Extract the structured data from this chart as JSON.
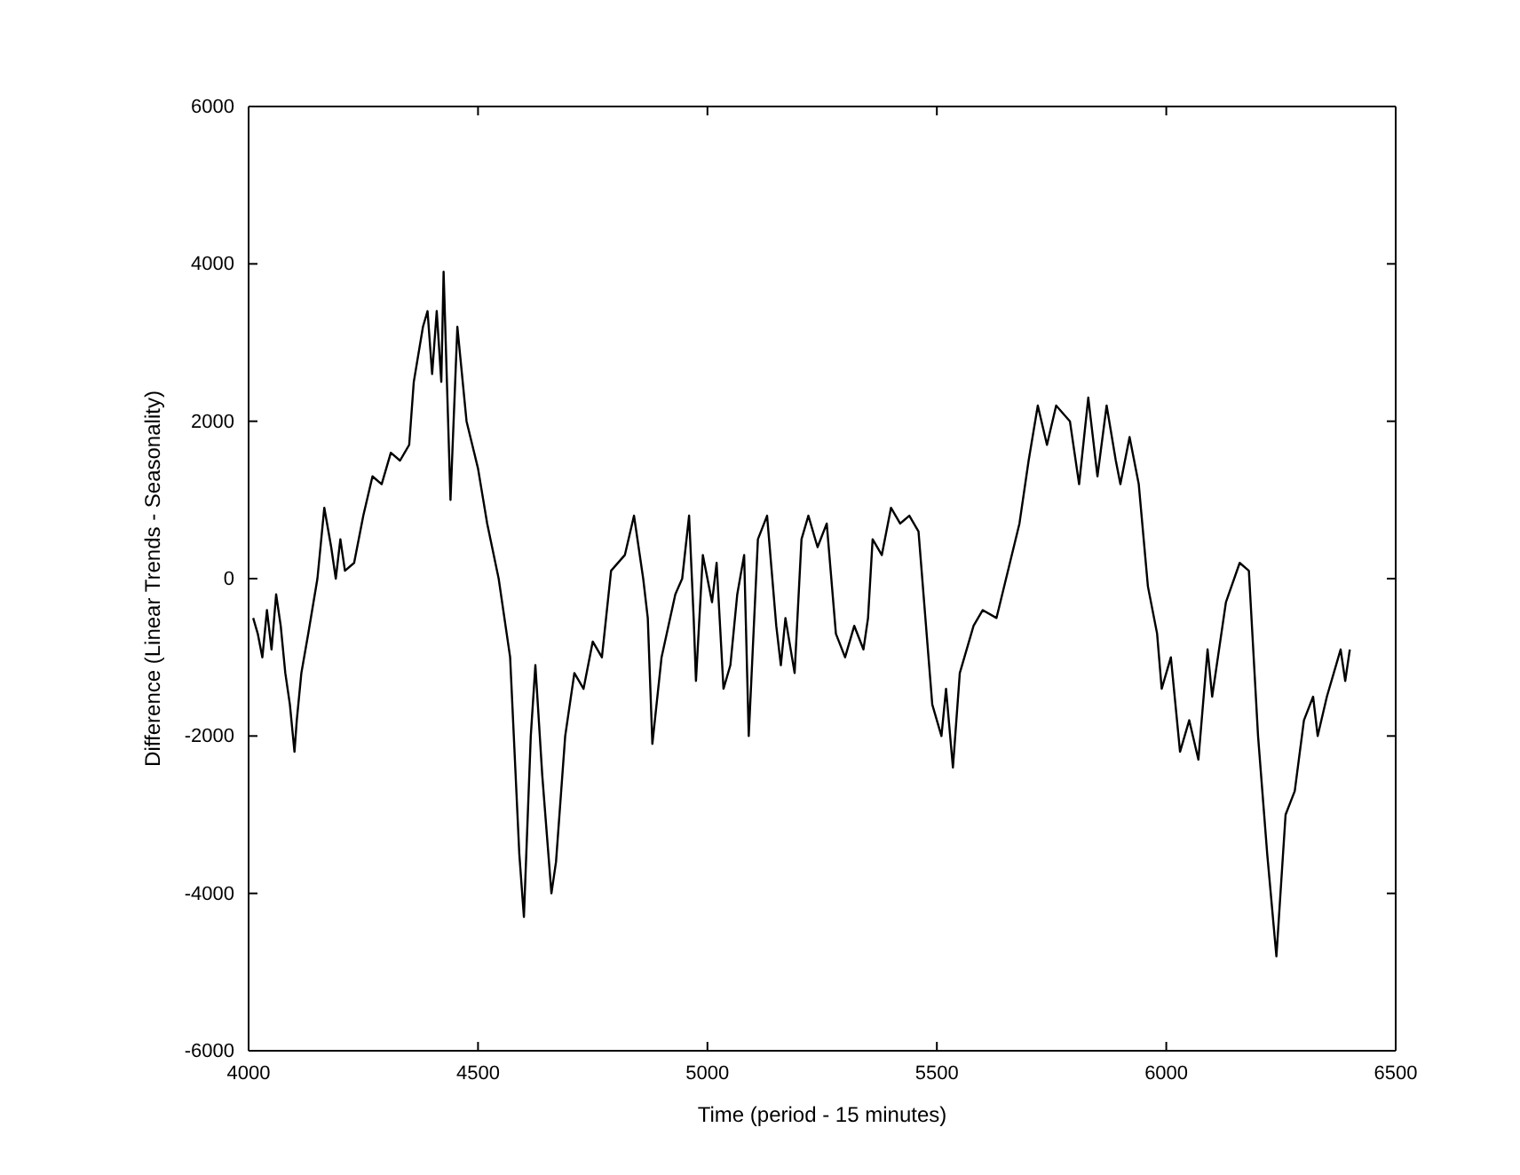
{
  "chart_data": {
    "type": "line",
    "xlabel": "Time (period - 15 minutes)",
    "ylabel": "Difference (Linear Trends - Seasonality)",
    "x": [
      4010,
      4020,
      4030,
      4040,
      4050,
      4060,
      4070,
      4080,
      4090,
      4100,
      4105,
      4115,
      4130,
      4150,
      4165,
      4180,
      4190,
      4200,
      4210,
      4230,
      4250,
      4270,
      4290,
      4310,
      4330,
      4350,
      4360,
      4380,
      4390,
      4400,
      4410,
      4420,
      4425,
      4440,
      4455,
      4475,
      4500,
      4520,
      4545,
      4570,
      4590,
      4600,
      4615,
      4625,
      4640,
      4660,
      4670,
      4690,
      4710,
      4730,
      4750,
      4770,
      4790,
      4820,
      4840,
      4860,
      4870,
      4880,
      4900,
      4930,
      4945,
      4960,
      4970,
      4975,
      4990,
      5010,
      5020,
      5035,
      5050,
      5065,
      5080,
      5090,
      5110,
      5130,
      5150,
      5160,
      5170,
      5190,
      5205,
      5220,
      5240,
      5260,
      5280,
      5300,
      5320,
      5340,
      5350,
      5360,
      5380,
      5400,
      5420,
      5440,
      5460,
      5475,
      5490,
      5510,
      5520,
      5535,
      5550,
      5570,
      5580,
      5600,
      5630,
      5680,
      5700,
      5720,
      5740,
      5760,
      5790,
      5810,
      5830,
      5850,
      5870,
      5890,
      5900,
      5920,
      5940,
      5960,
      5980,
      5990,
      6010,
      6030,
      6050,
      6070,
      6090,
      6100,
      6130,
      6160,
      6180,
      6200,
      6220,
      6240,
      6260,
      6280,
      6300,
      6320,
      6330,
      6350,
      6380,
      6390,
      6400
    ],
    "series": [
      {
        "color": "#000000",
        "values": [
          -500,
          -700,
          -1000,
          -400,
          -900,
          -200,
          -600,
          -1200,
          -1600,
          -2200,
          -1800,
          -1200,
          -700,
          0,
          900,
          400,
          0,
          500,
          100,
          200,
          800,
          1300,
          1200,
          1600,
          1500,
          1700,
          2500,
          3200,
          3400,
          2600,
          3400,
          2500,
          3900,
          1000,
          3200,
          2000,
          1400,
          700,
          0,
          -1000,
          -3500,
          -4300,
          -2000,
          -1100,
          -2500,
          -4000,
          -3600,
          -2000,
          -1200,
          -1400,
          -800,
          -1000,
          100,
          300,
          800,
          0,
          -500,
          -2100,
          -1000,
          -200,
          0,
          800,
          -500,
          -1300,
          300,
          -300,
          200,
          -1400,
          -1100,
          -200,
          300,
          -2000,
          500,
          800,
          -600,
          -1100,
          -500,
          -1200,
          500,
          800,
          400,
          700,
          -700,
          -1000,
          -600,
          -900,
          -500,
          500,
          300,
          900,
          700,
          800,
          600,
          -500,
          -1600,
          -2000,
          -1400,
          -2400,
          -1200,
          -800,
          -600,
          -400,
          -500,
          700,
          1500,
          2200,
          1700,
          2200,
          2000,
          1200,
          2300,
          1300,
          2200,
          1500,
          1200,
          1800,
          1200,
          -100,
          -700,
          -1400,
          -1000,
          -2200,
          -1800,
          -2300,
          -900,
          -1500,
          -300,
          200,
          100,
          -2000,
          -3500,
          -4800,
          -3000,
          -2700,
          -1800,
          -1500,
          -2000,
          -1500,
          -900,
          -1300,
          -900
        ]
      }
    ],
    "xlim": [
      4000,
      6500
    ],
    "ylim": [
      -6000,
      6000
    ],
    "xticks": [
      4000,
      4500,
      5000,
      5500,
      6000,
      6500
    ],
    "yticks": [
      -6000,
      -4000,
      -2000,
      0,
      2000,
      4000,
      6000
    ],
    "grid": false,
    "marker": "none",
    "line_style": "solid"
  }
}
